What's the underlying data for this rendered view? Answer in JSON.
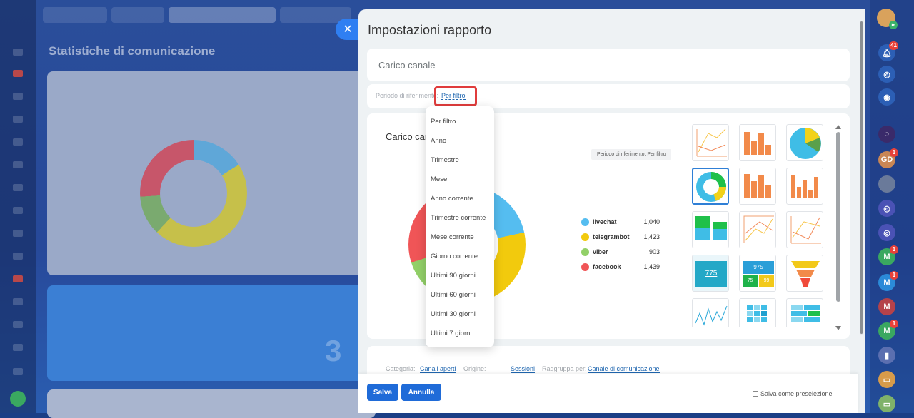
{
  "background": {
    "page_title": "Statistiche di comunicazione",
    "big_number": "3"
  },
  "panel": {
    "title": "Impostazioni rapporto",
    "close_icon": "close-icon"
  },
  "report_name": "Carico canale",
  "period": {
    "label": "Periodo di riferimento:",
    "value": "Per filtro"
  },
  "preview": {
    "title": "Carico canale",
    "tooltip": "Periodo di riferimento: Per filtro"
  },
  "chart_data": {
    "type": "pie",
    "title": "Carico canale",
    "categories": [
      "livechat",
      "telegrambot",
      "viber",
      "facebook"
    ],
    "values": [
      1040,
      1423,
      903,
      1439
    ],
    "value_labels": [
      "1,040",
      "1,423",
      "903",
      "1,439"
    ],
    "colors": [
      "#55bdf0",
      "#f2ca0d",
      "#92d068",
      "#f05557"
    ],
    "legend": "right"
  },
  "period_options": [
    "Per filtro",
    "Anno",
    "Trimestre",
    "Mese",
    "Anno corrente",
    "Trimestre corrente",
    "Mese corrente",
    "Giorno corrente",
    "Ultimi 90 giorni",
    "Ultimi 60 giorni",
    "Ultimi 30 giorni",
    "Ultimi 7 giorni"
  ],
  "thumbnail_labels": {
    "number_tile": "775",
    "multi_number_tile": "975",
    "multi_small_1": "75",
    "multi_small_2": "99"
  },
  "filters": {
    "category_label": "Categoria:",
    "category_value": "Canali aperti",
    "origin_label": "Origine:",
    "origin_value": "Sessioni",
    "group_label": "Raggruppa per:",
    "group_value": "Canale di comunicazione"
  },
  "footer": {
    "save": "Salva",
    "cancel": "Annulla",
    "preset": "Salva come preselezione"
  },
  "right_bar": {
    "notification_count": "41",
    "avatar_gd": "GD",
    "avatar_m": "M",
    "badge_one": "1"
  }
}
